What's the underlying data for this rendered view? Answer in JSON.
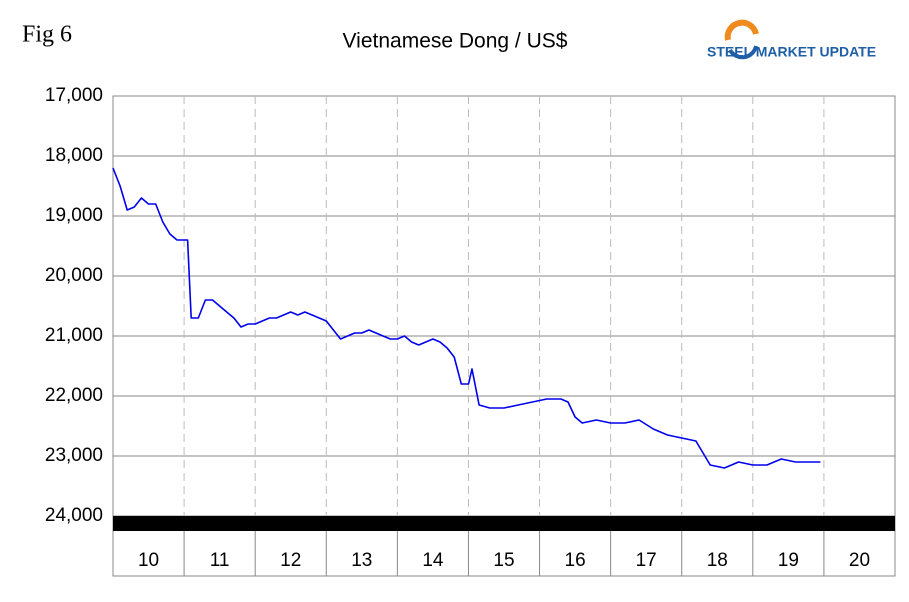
{
  "chart_data": {
    "type": "line",
    "figure_label": "Fig 6",
    "title": "Vietnamese Dong / US$",
    "logo_text": "STEEL MARKET UPDATE",
    "color": "#0000ee",
    "y_inverted": true,
    "ylim": [
      17000,
      24000
    ],
    "yticks": [
      {
        "value": 17000,
        "label": "17,000"
      },
      {
        "value": 18000,
        "label": "18,000"
      },
      {
        "value": 19000,
        "label": "19,000"
      },
      {
        "value": 20000,
        "label": "20,000"
      },
      {
        "value": 21000,
        "label": "21,000"
      },
      {
        "value": 22000,
        "label": "22,000"
      },
      {
        "value": 23000,
        "label": "23,000"
      },
      {
        "value": 24000,
        "label": "24,000"
      }
    ],
    "xlim": [
      10,
      21
    ],
    "xticks": [
      11,
      12,
      13,
      14,
      15,
      16,
      17,
      18,
      19,
      20
    ],
    "categories": [
      "10",
      "11",
      "12",
      "13",
      "14",
      "15",
      "16",
      "17",
      "18",
      "19",
      "20"
    ],
    "grid": true,
    "x": [
      10.0,
      10.1,
      10.2,
      10.3,
      10.4,
      10.5,
      10.6,
      10.7,
      10.8,
      10.9,
      11.0,
      11.05,
      11.1,
      11.2,
      11.3,
      11.4,
      11.5,
      11.6,
      11.7,
      11.8,
      11.9,
      12.0,
      12.1,
      12.2,
      12.3,
      12.4,
      12.5,
      12.6,
      12.7,
      12.8,
      12.9,
      13.0,
      13.1,
      13.2,
      13.3,
      13.4,
      13.5,
      13.6,
      13.7,
      13.8,
      13.9,
      14.0,
      14.1,
      14.2,
      14.3,
      14.4,
      14.5,
      14.6,
      14.7,
      14.8,
      14.9,
      15.0,
      15.05,
      15.15,
      15.3,
      15.5,
      15.7,
      15.9,
      16.1,
      16.3,
      16.4,
      16.5,
      16.6,
      16.8,
      17.0,
      17.2,
      17.4,
      17.6,
      17.8,
      18.0,
      18.2,
      18.4,
      18.6,
      18.8,
      19.0,
      19.2,
      19.3,
      19.4,
      19.6,
      19.8,
      19.95
    ],
    "values": [
      18200,
      18500,
      18900,
      18850,
      18700,
      18800,
      18800,
      19100,
      19300,
      19400,
      19400,
      19400,
      20700,
      20700,
      20400,
      20400,
      20500,
      20600,
      20700,
      20850,
      20800,
      20800,
      20750,
      20700,
      20700,
      20650,
      20600,
      20650,
      20600,
      20650,
      20700,
      20750,
      20900,
      21050,
      21000,
      20950,
      20950,
      20900,
      20950,
      21000,
      21050,
      21050,
      21000,
      21100,
      21150,
      21100,
      21050,
      21100,
      21200,
      21350,
      21800,
      21800,
      21550,
      22150,
      22200,
      22200,
      22150,
      22100,
      22050,
      22050,
      22100,
      22350,
      22450,
      22400,
      22450,
      22450,
      22400,
      22550,
      22650,
      22700,
      22750,
      23150,
      23200,
      23100,
      23150,
      23150,
      23100,
      23050,
      23100,
      23100,
      23100
    ]
  }
}
